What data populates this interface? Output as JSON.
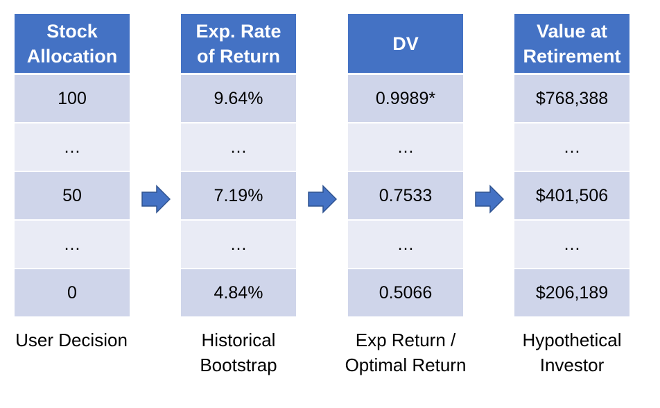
{
  "colors": {
    "header_bg": "#4472c4",
    "row_dark": "#cfd5ea",
    "row_light": "#e9ebf5",
    "arrow_fill": "#4472c4",
    "arrow_stroke": "#2f528f"
  },
  "columns": [
    {
      "header": "Stock\nAllocation",
      "cells": [
        "100",
        "…",
        "50",
        "…",
        "0"
      ],
      "caption": "User Decision"
    },
    {
      "header": "Exp. Rate\nof Return",
      "cells": [
        "9.64%",
        "…",
        "7.19%",
        "…",
        "4.84%"
      ],
      "caption": "Historical\nBootstrap"
    },
    {
      "header": "DV",
      "cells": [
        "0.9989*",
        "…",
        "0.7533",
        "…",
        "0.5066"
      ],
      "caption": "Exp Return /\nOptimal Return"
    },
    {
      "header": "Value at\nRetirement",
      "cells": [
        "$768,388",
        "…",
        "$401,506",
        "…",
        "$206,189"
      ],
      "caption": "Hypothetical\nInvestor"
    }
  ],
  "arrows": [
    "right-arrow-icon",
    "right-arrow-icon",
    "right-arrow-icon"
  ]
}
